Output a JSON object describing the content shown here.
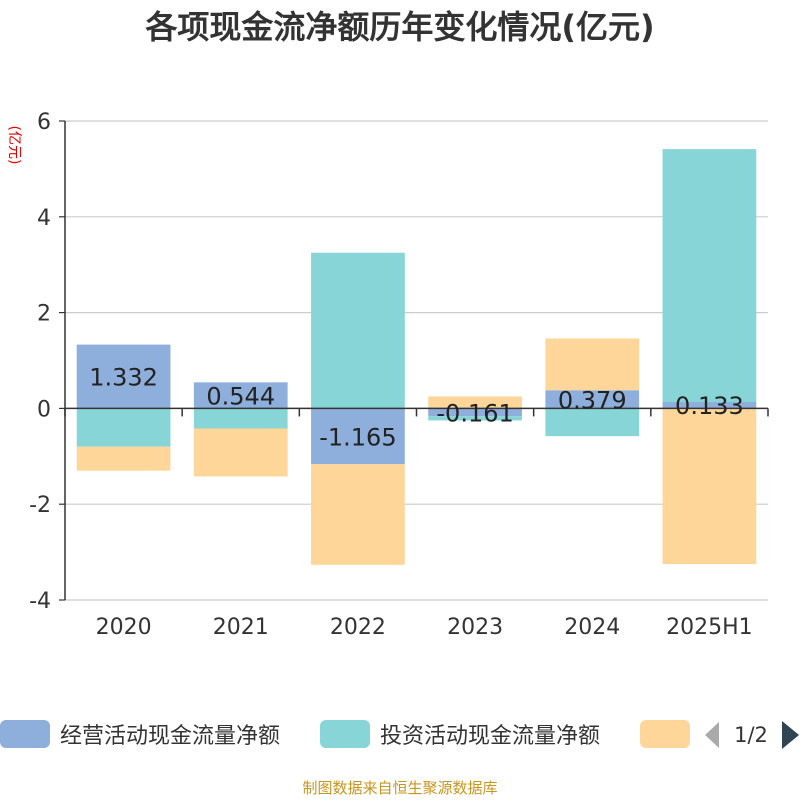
{
  "chart_data": {
    "type": "bar",
    "stacked": true,
    "title": "各项现金流净额历年变化情况(亿元)",
    "ylabel": "(亿元)",
    "xlabel": "",
    "categories": [
      "2020",
      "2021",
      "2022",
      "2023",
      "2024",
      "2025H1"
    ],
    "ylim": [
      -4,
      6
    ],
    "yticks": [
      -4,
      -2,
      0,
      2,
      4,
      6
    ],
    "grid": true,
    "series": [
      {
        "name": "经营活动现金流量净额",
        "color": "#8eaedb",
        "values": [
          1.332,
          0.544,
          -1.165,
          -0.161,
          0.379,
          0.133
        ]
      },
      {
        "name": "投资活动现金流量净额",
        "color": "#88d5d8",
        "values": [
          -0.8,
          -0.42,
          3.25,
          -0.09,
          -0.58,
          5.28
        ]
      },
      {
        "name": "",
        "color": "#ffd699",
        "values": [
          -0.5,
          -1.0,
          -2.1,
          0.25,
          1.08,
          -3.25
        ]
      }
    ],
    "data_labels": [
      "1.332",
      "0.544",
      "-1.165",
      "-0.161",
      "0.379",
      "0.133"
    ],
    "legend": {
      "placement": "bottom",
      "page": "1/2"
    }
  },
  "footer": {
    "source": "制图数据来自恒生聚源数据库",
    "color": "#c8961e"
  }
}
